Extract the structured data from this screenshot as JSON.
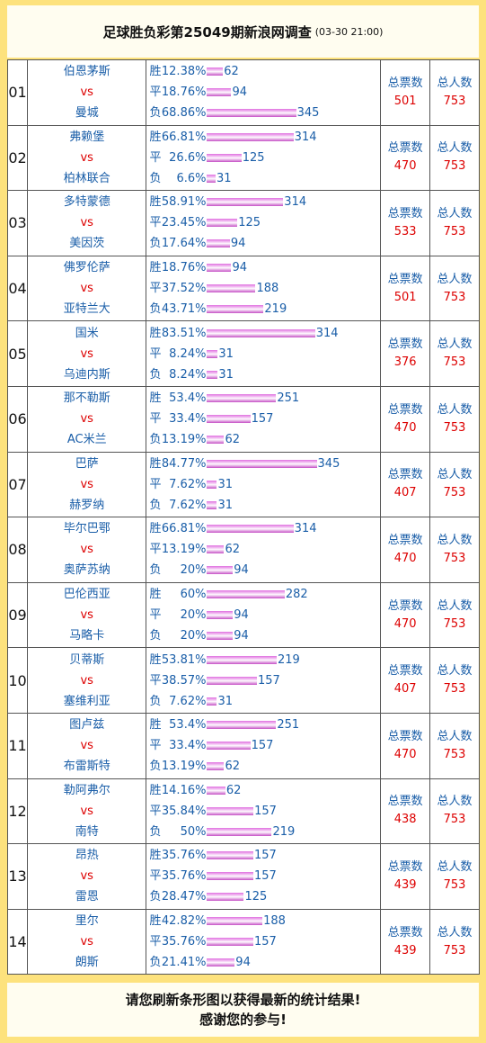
{
  "header": {
    "title": "足球胜负彩第25049期新浪网调查",
    "date": "(03-30 21:00)"
  },
  "table": {
    "rows": [
      {
        "no": "01",
        "home": "伯恩茅斯",
        "vs": "vs",
        "away": "曼城",
        "outcomes": [
          {
            "label": "胜",
            "pct": {
              "value": 12.38,
              "label": "12.38%"
            },
            "count": 62
          },
          {
            "label": "平",
            "pct": {
              "value": 18.76,
              "label": "18.76%"
            },
            "count": 94
          },
          {
            "label": "负",
            "pct": {
              "value": 68.86,
              "label": "68.86%"
            },
            "count": 345
          }
        ],
        "votes_label": "总票数",
        "votes": 501,
        "people_label": "总人数",
        "people": 753
      },
      {
        "no": "02",
        "home": "弗赖堡",
        "vs": "vs",
        "away": "柏林联合",
        "outcomes": [
          {
            "label": "胜",
            "pct": {
              "value": 66.81,
              "label": "66.81%"
            },
            "count": 314
          },
          {
            "label": "平",
            "pct": {
              "value": 26.6,
              "label": "26.6%"
            },
            "count": 125
          },
          {
            "label": "负",
            "pct": {
              "value": 6.6,
              "label": "6.6%"
            },
            "count": 31
          }
        ],
        "votes_label": "总票数",
        "votes": 470,
        "people_label": "总人数",
        "people": 753
      },
      {
        "no": "03",
        "home": "多特蒙德",
        "vs": "vs",
        "away": "美因茨",
        "outcomes": [
          {
            "label": "胜",
            "pct": {
              "value": 58.91,
              "label": "58.91%"
            },
            "count": 314
          },
          {
            "label": "平",
            "pct": {
              "value": 23.45,
              "label": "23.45%"
            },
            "count": 125
          },
          {
            "label": "负",
            "pct": {
              "value": 17.64,
              "label": "17.64%"
            },
            "count": 94
          }
        ],
        "votes_label": "总票数",
        "votes": 533,
        "people_label": "总人数",
        "people": 753
      },
      {
        "no": "04",
        "home": "佛罗伦萨",
        "vs": "vs",
        "away": "亚特兰大",
        "outcomes": [
          {
            "label": "胜",
            "pct": {
              "value": 18.76,
              "label": "18.76%"
            },
            "count": 94
          },
          {
            "label": "平",
            "pct": {
              "value": 37.52,
              "label": "37.52%"
            },
            "count": 188
          },
          {
            "label": "负",
            "pct": {
              "value": 43.71,
              "label": "43.71%"
            },
            "count": 219
          }
        ],
        "votes_label": "总票数",
        "votes": 501,
        "people_label": "总人数",
        "people": 753
      },
      {
        "no": "05",
        "home": "国米",
        "vs": "vs",
        "away": "乌迪内斯",
        "outcomes": [
          {
            "label": "胜",
            "pct": {
              "value": 83.51,
              "label": "83.51%"
            },
            "count": 314
          },
          {
            "label": "平",
            "pct": {
              "value": 8.24,
              "label": "8.24%"
            },
            "count": 31
          },
          {
            "label": "负",
            "pct": {
              "value": 8.24,
              "label": "8.24%"
            },
            "count": 31
          }
        ],
        "votes_label": "总票数",
        "votes": 376,
        "people_label": "总人数",
        "people": 753
      },
      {
        "no": "06",
        "home": "那不勒斯",
        "vs": "vs",
        "away": "AC米兰",
        "outcomes": [
          {
            "label": "胜",
            "pct": {
              "value": 53.4,
              "label": "53.4%"
            },
            "count": 251
          },
          {
            "label": "平",
            "pct": {
              "value": 33.4,
              "label": "33.4%"
            },
            "count": 157
          },
          {
            "label": "负",
            "pct": {
              "value": 13.19,
              "label": "13.19%"
            },
            "count": 62
          }
        ],
        "votes_label": "总票数",
        "votes": 470,
        "people_label": "总人数",
        "people": 753
      },
      {
        "no": "07",
        "home": "巴萨",
        "vs": "vs",
        "away": "赫罗纳",
        "outcomes": [
          {
            "label": "胜",
            "pct": {
              "value": 84.77,
              "label": "84.77%"
            },
            "count": 345
          },
          {
            "label": "平",
            "pct": {
              "value": 7.62,
              "label": "7.62%"
            },
            "count": 31
          },
          {
            "label": "负",
            "pct": {
              "value": 7.62,
              "label": "7.62%"
            },
            "count": 31
          }
        ],
        "votes_label": "总票数",
        "votes": 407,
        "people_label": "总人数",
        "people": 753
      },
      {
        "no": "08",
        "home": "毕尔巴鄂",
        "vs": "vs",
        "away": "奥萨苏纳",
        "outcomes": [
          {
            "label": "胜",
            "pct": {
              "value": 66.81,
              "label": "66.81%"
            },
            "count": 314
          },
          {
            "label": "平",
            "pct": {
              "value": 13.19,
              "label": "13.19%"
            },
            "count": 62
          },
          {
            "label": "负",
            "pct": {
              "value": 20,
              "label": "20%"
            },
            "count": 94
          }
        ],
        "votes_label": "总票数",
        "votes": 470,
        "people_label": "总人数",
        "people": 753
      },
      {
        "no": "09",
        "home": "巴伦西亚",
        "vs": "vs",
        "away": "马略卡",
        "outcomes": [
          {
            "label": "胜",
            "pct": {
              "value": 60,
              "label": "60%"
            },
            "count": 282
          },
          {
            "label": "平",
            "pct": {
              "value": 20,
              "label": "20%"
            },
            "count": 94
          },
          {
            "label": "负",
            "pct": {
              "value": 20,
              "label": "20%"
            },
            "count": 94
          }
        ],
        "votes_label": "总票数",
        "votes": 470,
        "people_label": "总人数",
        "people": 753
      },
      {
        "no": "10",
        "home": "贝蒂斯",
        "vs": "vs",
        "away": "塞维利亚",
        "outcomes": [
          {
            "label": "胜",
            "pct": {
              "value": 53.81,
              "label": "53.81%"
            },
            "count": 219
          },
          {
            "label": "平",
            "pct": {
              "value": 38.57,
              "label": "38.57%"
            },
            "count": 157
          },
          {
            "label": "负",
            "pct": {
              "value": 7.62,
              "label": "7.62%"
            },
            "count": 31
          }
        ],
        "votes_label": "总票数",
        "votes": 407,
        "people_label": "总人数",
        "people": 753
      },
      {
        "no": "11",
        "home": "图卢兹",
        "vs": "vs",
        "away": "布雷斯特",
        "outcomes": [
          {
            "label": "胜",
            "pct": {
              "value": 53.4,
              "label": "53.4%"
            },
            "count": 251
          },
          {
            "label": "平",
            "pct": {
              "value": 33.4,
              "label": "33.4%"
            },
            "count": 157
          },
          {
            "label": "负",
            "pct": {
              "value": 13.19,
              "label": "13.19%"
            },
            "count": 62
          }
        ],
        "votes_label": "总票数",
        "votes": 470,
        "people_label": "总人数",
        "people": 753
      },
      {
        "no": "12",
        "home": "勒阿弗尔",
        "vs": "vs",
        "away": "南特",
        "outcomes": [
          {
            "label": "胜",
            "pct": {
              "value": 14.16,
              "label": "14.16%"
            },
            "count": 62
          },
          {
            "label": "平",
            "pct": {
              "value": 35.84,
              "label": "35.84%"
            },
            "count": 157
          },
          {
            "label": "负",
            "pct": {
              "value": 50,
              "label": "50%"
            },
            "count": 219
          }
        ],
        "votes_label": "总票数",
        "votes": 438,
        "people_label": "总人数",
        "people": 753
      },
      {
        "no": "13",
        "home": "昂热",
        "vs": "vs",
        "away": "雷恩",
        "outcomes": [
          {
            "label": "胜",
            "pct": {
              "value": 35.76,
              "label": "35.76%"
            },
            "count": 157
          },
          {
            "label": "平",
            "pct": {
              "value": 35.76,
              "label": "35.76%"
            },
            "count": 157
          },
          {
            "label": "负",
            "pct": {
              "value": 28.47,
              "label": "28.47%"
            },
            "count": 125
          }
        ],
        "votes_label": "总票数",
        "votes": 439,
        "people_label": "总人数",
        "people": 753
      },
      {
        "no": "14",
        "home": "里尔",
        "vs": "vs",
        "away": "朗斯",
        "outcomes": [
          {
            "label": "胜",
            "pct": {
              "value": 42.82,
              "label": "42.82%"
            },
            "count": 188
          },
          {
            "label": "平",
            "pct": {
              "value": 35.76,
              "label": "35.76%"
            },
            "count": 157
          },
          {
            "label": "负",
            "pct": {
              "value": 21.41,
              "label": "21.41%"
            },
            "count": 94
          }
        ],
        "votes_label": "总票数",
        "votes": 439,
        "people_label": "总人数",
        "people": 753
      }
    ]
  },
  "footer": {
    "line1": "请您刷新条形图以获得最新的统计结果!",
    "line2": "感谢您的参与!"
  }
}
